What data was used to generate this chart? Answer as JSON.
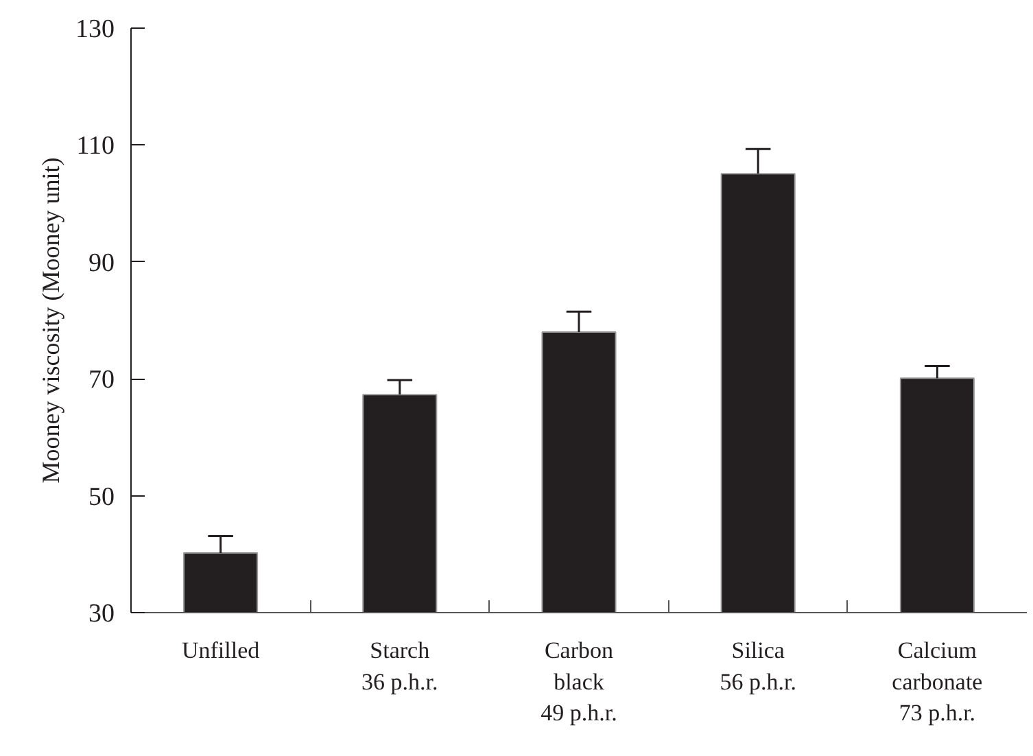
{
  "chart_data": {
    "type": "bar",
    "ylabel": "Mooney viscosity (Mooney unit)",
    "categories": [
      "Unfilled",
      "Starch\n36 p.h.r.",
      "Carbon\nblack\n49 p.h.r.",
      "Silica\n56 p.h.r.",
      "Calcium\ncarbonate\n73 p.h.r."
    ],
    "values": [
      40.2,
      67.3,
      78.0,
      105.1,
      70.1
    ],
    "errors": [
      [
        40.2,
        43.1
      ],
      [
        67.3,
        69.8
      ],
      [
        78.0,
        81.5
      ],
      [
        105.1,
        109.3
      ],
      [
        70.1,
        72.2
      ]
    ],
    "color": "#231f20",
    "ylim": [
      30,
      130
    ],
    "yticks": [
      30,
      50,
      70,
      90,
      110,
      130
    ],
    "grid": false
  }
}
